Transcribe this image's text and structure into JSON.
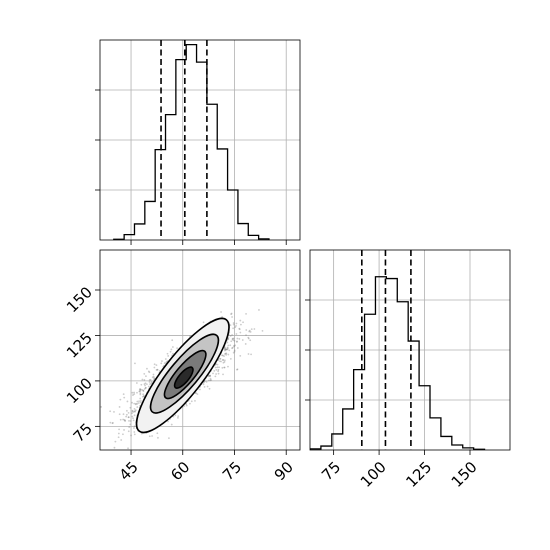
{
  "chart_data": [
    {
      "type": "histogram",
      "title": "",
      "xlabel": "",
      "ylabel": "",
      "xlim": [
        36,
        94
      ],
      "grid": true,
      "bin_edges": [
        40,
        43,
        46,
        49,
        52,
        55,
        58,
        61,
        64,
        67,
        70,
        73,
        76,
        79,
        82,
        85
      ],
      "counts": [
        0.2,
        1.5,
        4.5,
        10.8,
        25.3,
        35.1,
        50.5,
        54.7,
        49.8,
        38.0,
        25.5,
        14.0,
        4.6,
        1.3,
        0.3
      ],
      "ylim": [
        0,
        56
      ],
      "quantile_lines": [
        53.7,
        60.6,
        67.0
      ],
      "x_ticks": [
        45,
        60,
        75,
        90
      ],
      "y_tick_values": [
        14,
        28,
        42
      ]
    },
    {
      "type": "histogram",
      "title": "",
      "xlabel": "",
      "ylabel": "",
      "xlim": [
        62,
        172
      ],
      "grid": true,
      "bin_edges": [
        62,
        68,
        74,
        80,
        86,
        92,
        98,
        104,
        110,
        116,
        122,
        128,
        134,
        140,
        146,
        152,
        158
      ],
      "counts": [
        0.3,
        1.1,
        4.5,
        11.5,
        22.5,
        38.0,
        48.5,
        48.0,
        41.5,
        30.5,
        18.0,
        9.0,
        3.8,
        1.4,
        0.6,
        0.2
      ],
      "ylim": [
        0,
        56
      ],
      "quantile_lines": [
        90.5,
        103.5,
        117.5
      ],
      "x_ticks": [
        75,
        100,
        125,
        150
      ],
      "y_tick_values": [
        14,
        28,
        42
      ]
    },
    {
      "type": "scatter",
      "title": "",
      "xlabel": "",
      "ylabel": "",
      "xlim": [
        36,
        94
      ],
      "ylim": [
        62,
        172
      ],
      "grid": true,
      "points": {
        "mean": [
          60,
          103
        ],
        "sd": [
          7,
          12
        ],
        "correlation": 0.8,
        "count": 2200,
        "color": "#808080"
      },
      "contours": [
        {
          "level": 1,
          "center": [
            60,
            103
          ],
          "semi_axes": [
            20.5,
            5.7
          ],
          "angle_deg": 52,
          "fill": "#f2f2f2"
        },
        {
          "level": 2,
          "center": [
            60.5,
            104
          ],
          "semi_axes": [
            14.5,
            4.1
          ],
          "angle_deg": 50,
          "fill": "#c4c4c4"
        },
        {
          "level": 3,
          "center": [
            60.7,
            103.5
          ],
          "semi_axes": [
            8.8,
            2.6
          ],
          "angle_deg": 50,
          "fill": "#7a7a7a"
        },
        {
          "level": 4,
          "center": [
            60.3,
            101.8
          ],
          "semi_axes": [
            3.8,
            1.4
          ],
          "angle_deg": 50,
          "fill": "#2a2a2a"
        }
      ],
      "x_ticks": [
        45,
        60,
        75,
        90
      ],
      "y_ticks": [
        75,
        100,
        125,
        150
      ]
    }
  ]
}
